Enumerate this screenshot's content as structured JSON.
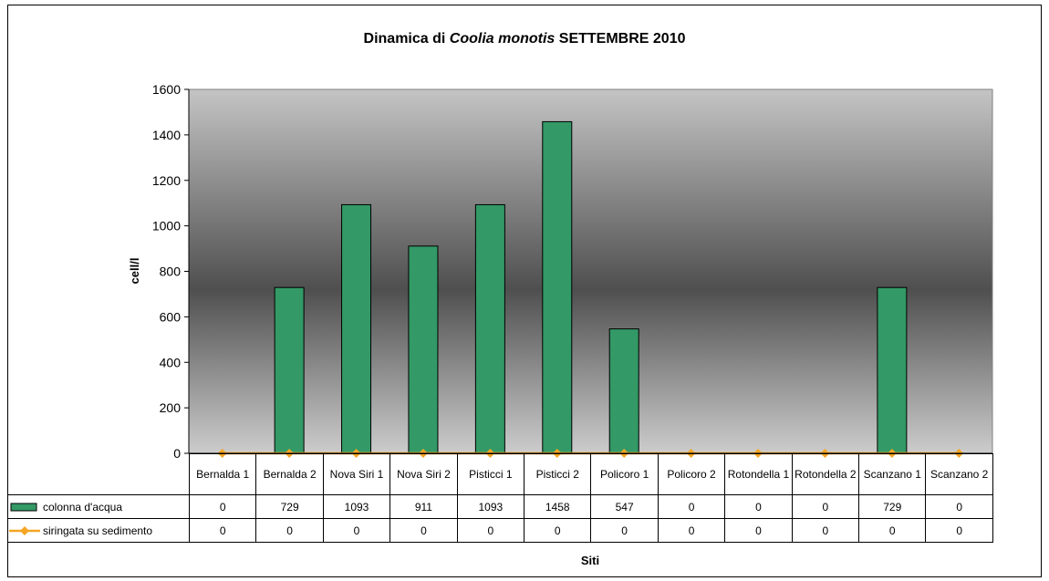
{
  "chart_data": {
    "type": "bar",
    "title": [
      "Dinamica di ",
      "Coolia monotis",
      " SETTEMBRE 2010"
    ],
    "x_label": "Siti",
    "y_label": "cell/l",
    "categories": [
      "Bernalda 1",
      "Bernalda 2",
      "Nova Siri 1",
      "Nova Siri 2",
      "Pisticci 1",
      "Pisticci 2",
      "Policoro 1",
      "Policoro 2",
      "Rotondella 1",
      "Rotondella 2",
      "Scanzano 1",
      "Scanzano 2"
    ],
    "series": [
      {
        "name": "colonna d'acqua",
        "type": "bar",
        "color": "#339966",
        "values": [
          0,
          729,
          1093,
          911,
          1093,
          1458,
          547,
          0,
          0,
          0,
          729,
          0
        ]
      },
      {
        "name": "siringata su sedimento",
        "type": "line",
        "color": "#f5a623",
        "values": [
          0,
          0,
          0,
          0,
          0,
          0,
          0,
          0,
          0,
          0,
          0,
          0
        ]
      }
    ],
    "ylim": [
      0,
      1600
    ],
    "yticks": [
      0,
      200,
      400,
      600,
      800,
      1000,
      1200,
      1400,
      1600
    ],
    "grid": false
  }
}
